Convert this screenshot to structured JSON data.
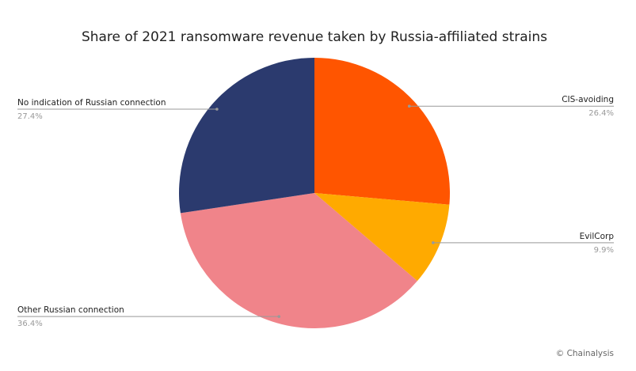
{
  "chart_data": {
    "type": "pie",
    "title": "Share of 2021 ransomware revenue taken by Russia-affiliated strains",
    "categories": [
      "CIS-avoiding",
      "EvilCorp",
      "Other Russian connection",
      "No indication of Russian connection"
    ],
    "values": [
      26.4,
      9.9,
      36.4,
      27.4
    ],
    "value_labels": [
      "26.4%",
      "9.9%",
      "36.4%",
      "27.4%"
    ],
    "colors": [
      "#ff5500",
      "#ffaa00",
      "#f0848a",
      "#2b3a6e"
    ],
    "credit": "© Chainalysis"
  }
}
